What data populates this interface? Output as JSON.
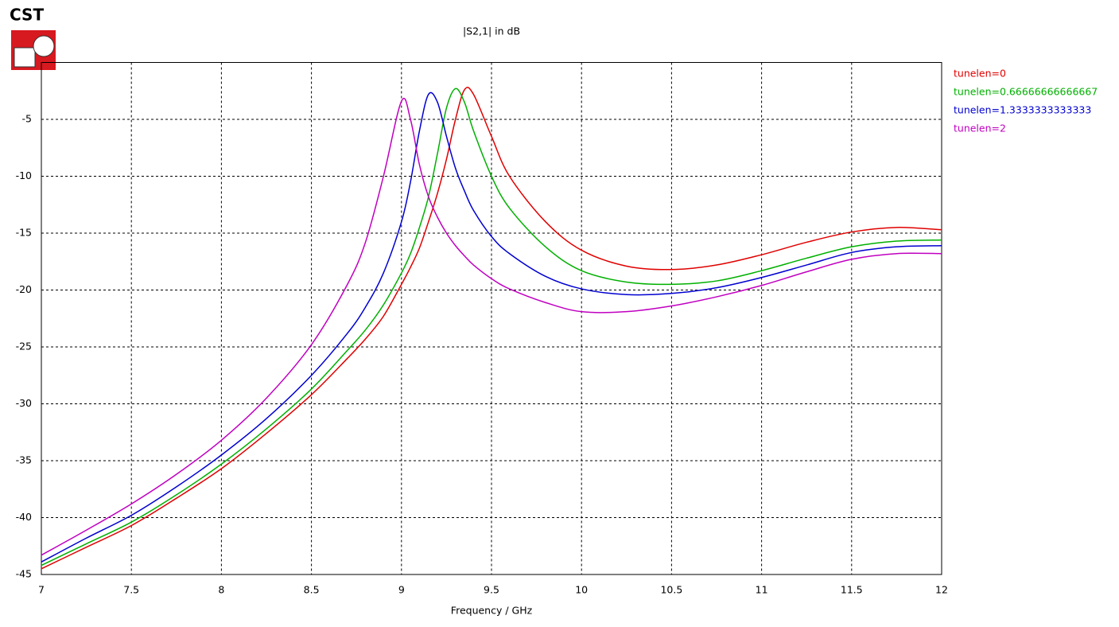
{
  "chart_data": {
    "type": "line",
    "logo": "CST",
    "title": "|S2,1| in dB",
    "x_label": "Frequency / GHz",
    "x": [
      7,
      7.25,
      7.5,
      7.75,
      8,
      8.25,
      8.5,
      8.7,
      8.8,
      8.9,
      9,
      9.05,
      9.1,
      9.15,
      9.2,
      9.25,
      9.3,
      9.35,
      9.4,
      9.5,
      9.6,
      9.8,
      10,
      10.25,
      10.5,
      10.75,
      11,
      11.25,
      11.5,
      11.75,
      12
    ],
    "series": [
      {
        "name": "tunelen=0",
        "color": "#e00000",
        "values": [
          -44.5,
          -42.6,
          -40.7,
          -38.3,
          -35.7,
          -32.6,
          -29.2,
          -26,
          -24.3,
          -22.3,
          -19.5,
          -18,
          -16.3,
          -14,
          -11.5,
          -8.5,
          -5,
          -2.4,
          -2.8,
          -6.5,
          -10,
          -14,
          -16.5,
          -17.9,
          -18.2,
          -17.8,
          -16.9,
          -15.8,
          -14.9,
          -14.5,
          -14.7
        ]
      },
      {
        "name": "tunelen=0.66666666666667",
        "color": "#00b000",
        "values": [
          -44.2,
          -42.3,
          -40.4,
          -38,
          -35.3,
          -32.2,
          -28.7,
          -25.3,
          -23.5,
          -21.3,
          -18.5,
          -16.8,
          -14.5,
          -11.8,
          -8,
          -4,
          -2.3,
          -3.5,
          -6,
          -10,
          -12.8,
          -16.2,
          -18.3,
          -19.3,
          -19.5,
          -19.2,
          -18.3,
          -17.2,
          -16.2,
          -15.7,
          -15.6
        ]
      },
      {
        "name": "tunelen=1.3333333333333",
        "color": "#0000d0",
        "values": [
          -43.9,
          -41.8,
          -39.8,
          -37.3,
          -34.5,
          -31.3,
          -27.5,
          -23.8,
          -21.5,
          -18.5,
          -14,
          -10.5,
          -6,
          -2.8,
          -3.5,
          -6.5,
          -9.3,
          -11.3,
          -13,
          -15.3,
          -16.8,
          -18.8,
          -19.9,
          -20.4,
          -20.3,
          -19.8,
          -18.9,
          -17.8,
          -16.7,
          -16.2,
          -16.1
        ]
      },
      {
        "name": "tunelen=2",
        "color": "#c000c0",
        "values": [
          -43.3,
          -41.1,
          -38.8,
          -36.2,
          -33.2,
          -29.5,
          -24.8,
          -19.5,
          -15.8,
          -10,
          -3.4,
          -5,
          -9,
          -11.8,
          -13.6,
          -15,
          -16.1,
          -17,
          -17.8,
          -19,
          -19.9,
          -21.1,
          -21.9,
          -21.9,
          -21.4,
          -20.6,
          -19.6,
          -18.4,
          -17.3,
          -16.8,
          -16.8
        ]
      }
    ],
    "xlim": [
      7,
      12
    ],
    "xticks": [
      7,
      7.5,
      8,
      8.5,
      9,
      9.5,
      10,
      10.5,
      11,
      11.5,
      12
    ],
    "ylim": [
      -45,
      0
    ],
    "yticks": [
      -45,
      -40,
      -35,
      -30,
      -25,
      -20,
      -15,
      -10,
      -5
    ],
    "grid": true,
    "legend": "right"
  }
}
